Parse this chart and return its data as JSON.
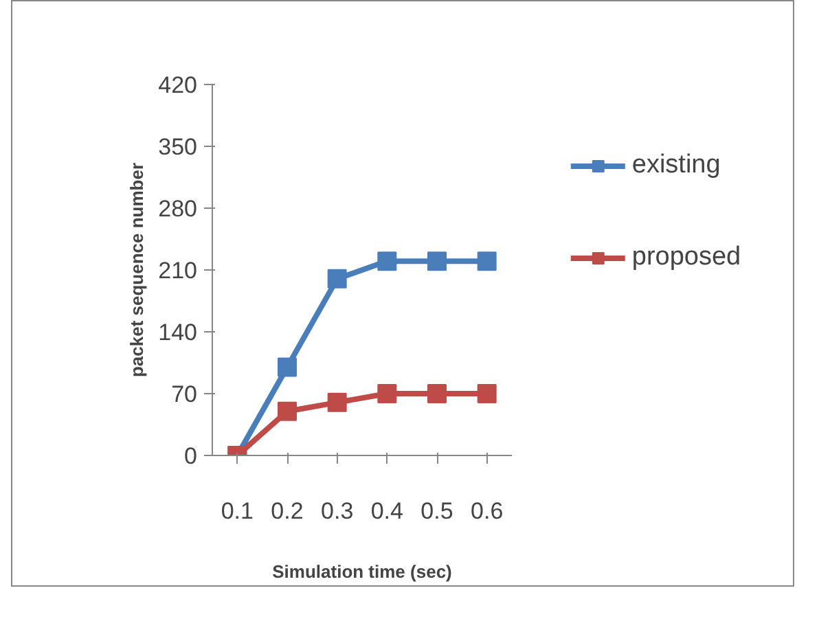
{
  "chart_data": {
    "type": "line",
    "xlabel": "Simulation time (sec)",
    "ylabel": "packet sequence number",
    "categories": [
      "0.1",
      "0.2",
      "0.3",
      "0.4",
      "0.5",
      "0.6"
    ],
    "series": [
      {
        "name": "existing",
        "color": "#4a7ebb",
        "values": [
          0,
          100,
          200,
          220,
          220,
          220
        ]
      },
      {
        "name": "proposed",
        "color": "#be4b48",
        "values": [
          0,
          50,
          60,
          70,
          70,
          70
        ]
      }
    ],
    "ylim": [
      0,
      420
    ],
    "yticks": [
      0,
      70,
      140,
      210,
      280,
      350,
      420
    ],
    "legend": "right",
    "marker": "square",
    "line_style": "solid"
  }
}
